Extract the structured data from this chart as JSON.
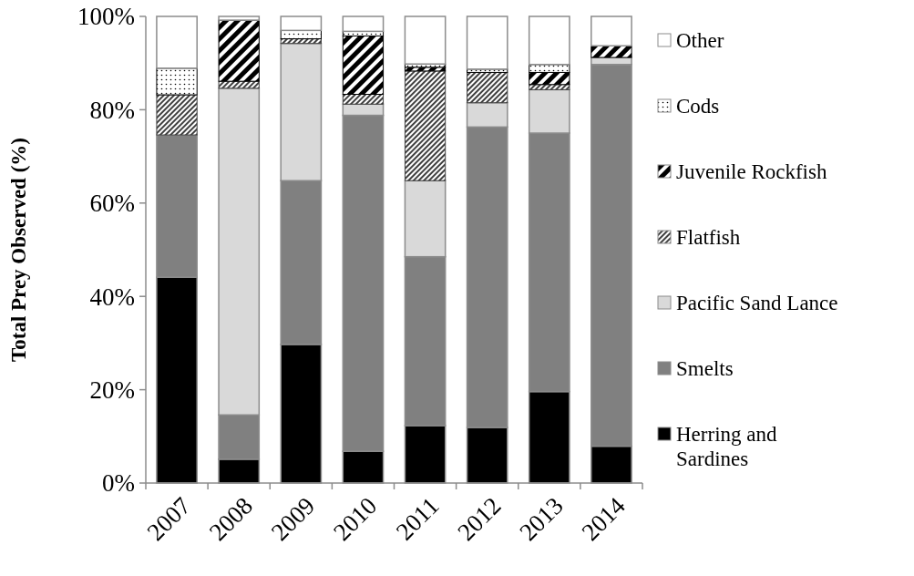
{
  "chart_data": {
    "type": "bar",
    "stacked": true,
    "ylabel": "Total Prey Observed (%)",
    "categories": [
      "2007",
      "2008",
      "2009",
      "2010",
      "2011",
      "2012",
      "2013",
      "2014"
    ],
    "series": [
      {
        "name": "Herring and Sardines",
        "color": "#000000",
        "values": [
          44.1,
          5.1,
          29.7,
          6.8,
          12.3,
          11.9,
          19.6,
          7.9
        ]
      },
      {
        "name": "Smelts",
        "color": "#808080",
        "values": [
          30.5,
          9.5,
          35.1,
          72.0,
          36.2,
          64.4,
          55.4,
          81.8
        ]
      },
      {
        "name": "Pacific Sand Lance",
        "color": "#d9d9d9",
        "values": [
          0,
          70.0,
          29.4,
          2.4,
          16.3,
          5.2,
          9.3,
          1.5
        ]
      },
      {
        "name": "Flatfish",
        "color": "#404040",
        "values": [
          8.6,
          1.5,
          1.0,
          2.1,
          23.5,
          6.5,
          1.1,
          0
        ]
      },
      {
        "name": "Juvenile Rockfish",
        "color": "#000000",
        "values": [
          0,
          13.1,
          0,
          12.5,
          0.8,
          0,
          2.6,
          2.5
        ]
      },
      {
        "name": "Cods",
        "color": "#000000",
        "values": [
          5.7,
          0,
          1.8,
          1.0,
          0.7,
          0.7,
          1.7,
          0
        ]
      },
      {
        "name": "Other",
        "color": "#ffffff",
        "values": [
          11.1,
          0.8,
          3.0,
          3.2,
          10.2,
          11.3,
          10.3,
          6.3
        ]
      }
    ],
    "ylim": [
      0,
      100
    ],
    "yticks": [
      {
        "value": 0,
        "label": "0%"
      },
      {
        "value": 20,
        "label": "20%"
      },
      {
        "value": 40,
        "label": "40%"
      },
      {
        "value": 60,
        "label": "60%"
      },
      {
        "value": 80,
        "label": "80%"
      },
      {
        "value": 100,
        "label": "100%"
      }
    ],
    "grid": false,
    "legend": "right"
  }
}
